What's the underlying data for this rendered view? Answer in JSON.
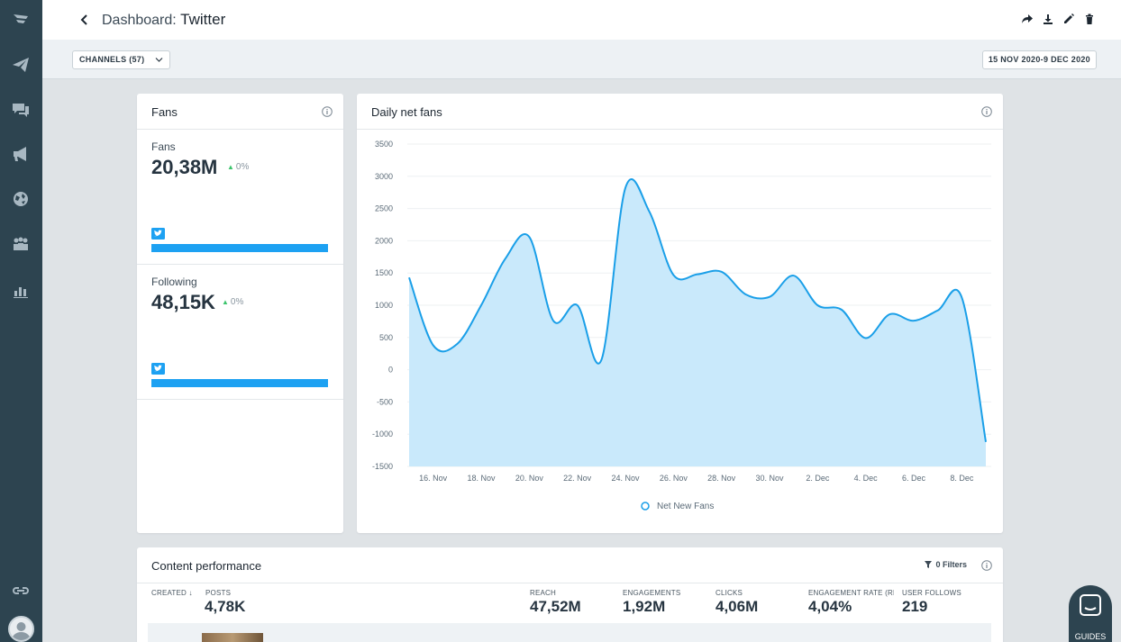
{
  "header": {
    "title_prefix": "Dashboard:",
    "title_name": "Twitter"
  },
  "filterbar": {
    "channels_label": "CHANNELS (57)",
    "date_range": "15 NOV 2020-9 DEC 2020"
  },
  "fans_card": {
    "title": "Fans",
    "metrics": [
      {
        "label": "Fans",
        "value": "20,38M",
        "change": "0%",
        "bar_fraction": 1.0
      },
      {
        "label": "Following",
        "value": "48,15K",
        "change": "0%",
        "bar_fraction": 1.0
      }
    ]
  },
  "chart_card": {
    "title": "Daily net fans"
  },
  "chart_data": {
    "type": "area",
    "title": "Daily net fans",
    "series": [
      {
        "name": "Net New Fans",
        "color": "#1a9fe8",
        "x": [
          15,
          16,
          17,
          18,
          19,
          20,
          21,
          22,
          23,
          24,
          25,
          26,
          27,
          28,
          29,
          30,
          31,
          32,
          33,
          34,
          35,
          36,
          37,
          38,
          39
        ],
        "values": [
          1430,
          380,
          400,
          1000,
          1720,
          2060,
          760,
          1000,
          150,
          2820,
          2450,
          1470,
          1480,
          1520,
          1170,
          1130,
          1460,
          1000,
          930,
          490,
          860,
          760,
          920,
          1120,
          -1120
        ]
      }
    ],
    "x_tick_labels": [
      "16. Nov",
      "18. Nov",
      "20. Nov",
      "22. Nov",
      "24. Nov",
      "26. Nov",
      "28. Nov",
      "30. Nov",
      "2. Dec",
      "4. Dec",
      "6. Dec",
      "8. Dec"
    ],
    "x_tick_values": [
      16,
      18,
      20,
      22,
      24,
      26,
      28,
      30,
      32,
      34,
      36,
      38
    ],
    "y_ticks": [
      3500,
      3000,
      2500,
      2000,
      1500,
      1000,
      500,
      0,
      -500,
      -1000,
      -1500
    ],
    "ylim": [
      -1500,
      3500
    ],
    "xlim": [
      15,
      39
    ],
    "legend": "bottom-center"
  },
  "content_performance": {
    "title": "Content performance",
    "filters_label": "0 Filters",
    "columns": [
      {
        "header": "CREATED",
        "value": ""
      },
      {
        "header": "POSTS",
        "value": "4,78K"
      },
      {
        "header": "REACH",
        "value": "47,52M"
      },
      {
        "header": "ENGAGEMENTS",
        "value": "1,92M"
      },
      {
        "header": "CLICKS",
        "value": "4,06M"
      },
      {
        "header": "ENGAGEMENT RATE (REA",
        "value": "4,04%"
      },
      {
        "header": "USER FOLLOWS",
        "value": "219"
      }
    ]
  },
  "guides": {
    "label": "GUIDES"
  },
  "colors": {
    "sidebar": "#2d4450",
    "twitter_blue": "#1da1f2",
    "area_fill": "#c9e9fb",
    "positive": "#3cc46c"
  }
}
